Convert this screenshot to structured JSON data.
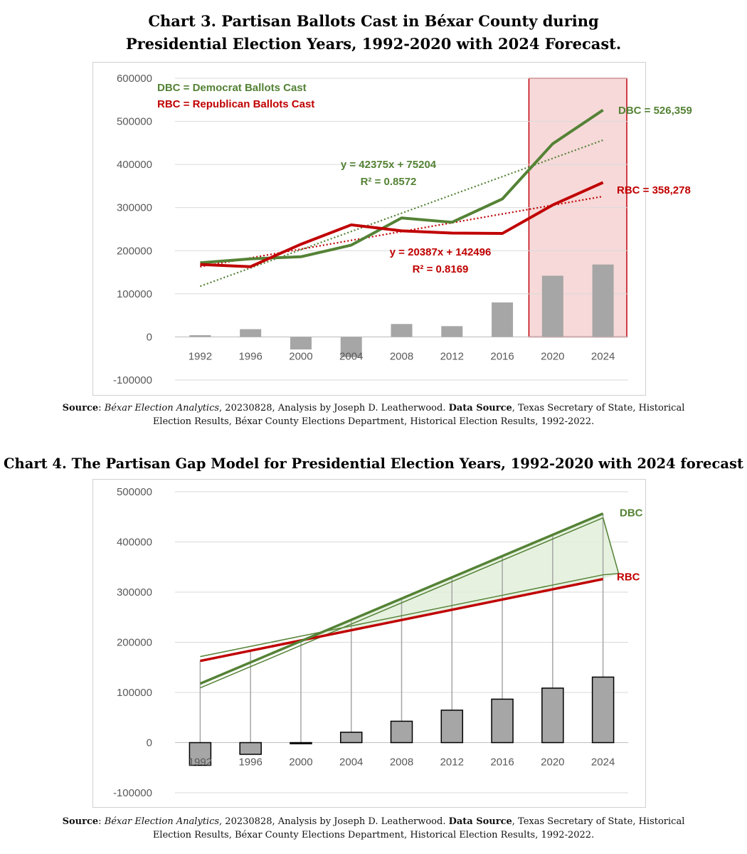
{
  "chart3": {
    "title_line1": "Chart 3. Partisan Ballots Cast in Béxar County during",
    "title_line2": "Presidential Election Years, 1992-2020 with 2024 Forecast.",
    "source_label": "Source",
    "source_pub": "Béxar Election Analytics",
    "source_rest": ", 20230828, Analysis by Joseph D. Leatherwood. ",
    "data_source_label": "Data Source",
    "data_source_rest": ", Texas Secretary of State, Historical Election Results, Béxar County Elections Department, Historical Election Results, 1992-2022."
  },
  "chart4": {
    "title": "Chart 4. The Partisan Gap Model for Presidential Election Years, 1992-2020 with 2024 forecast",
    "source_label": "Source",
    "source_pub": "Béxar Election Analytics",
    "source_rest": ", 20230828, Analysis by Joseph D. Leatherwood. ",
    "data_source_label": "Data Source",
    "data_source_rest": ", Texas Secretary of State, Historical Election Results, Béxar County Elections Department, Historical Election Results, 1992-2022."
  },
  "colors": {
    "dem": "#548235",
    "rep": "#c00000",
    "bar": "#a6a6a6",
    "highlight": "#f4cccc"
  },
  "chart_data": [
    {
      "type": "line",
      "title": "Chart 3. Partisan Ballots Cast in Béxar County during Presidential Election Years, 1992-2020 with 2024 Forecast.",
      "categories": [
        "1992",
        "1996",
        "2000",
        "2004",
        "2008",
        "2012",
        "2016",
        "2020",
        "2024"
      ],
      "yticks": [
        "600000",
        "500000",
        "400000",
        "300000",
        "200000",
        "100000",
        "0",
        "-100000"
      ],
      "ylim": [
        -100000,
        600000
      ],
      "grid": true,
      "legend": [
        "DBC = Democrat Ballots Cast",
        "RBC = Republican Ballots Cast"
      ],
      "series": [
        {
          "name": "DBC",
          "values": [
            172000,
            181000,
            186000,
            213000,
            276000,
            266000,
            320000,
            448000,
            526359
          ]
        },
        {
          "name": "RBC",
          "values": [
            168000,
            163000,
            215000,
            260000,
            246000,
            241000,
            240000,
            306000,
            358278
          ]
        }
      ],
      "gap_bars": [
        4000,
        18000,
        -29000,
        -47000,
        30000,
        25000,
        80000,
        142000,
        168000
      ],
      "trendlines": [
        {
          "series": "DBC",
          "equation": "y = 42375x + 75204",
          "r2": "R² = 0.8572",
          "slope": 42375,
          "intercept": 75204
        },
        {
          "series": "RBC",
          "equation": "y = 20387x + 142496",
          "r2": "R² = 0.8169",
          "slope": 20387,
          "intercept": 142496
        }
      ],
      "end_labels": [
        "DBC = 526,359",
        "RBC = 358,278"
      ],
      "highlight_categories": [
        "2020",
        "2024"
      ]
    },
    {
      "type": "line",
      "title": "Chart 4. The Partisan Gap Model for Presidential Election Years, 1992-2020 with 2024 forecast",
      "categories": [
        "1992",
        "1996",
        "2000",
        "2004",
        "2008",
        "2012",
        "2016",
        "2020",
        "2024"
      ],
      "yticks": [
        "500000",
        "400000",
        "300000",
        "200000",
        "100000",
        "0",
        "-100000"
      ],
      "ylim": [
        -100000,
        500000
      ],
      "grid": true,
      "series": [
        {
          "name": "DBC",
          "values": [
            117579,
            159954,
            202329,
            244704,
            287079,
            329454,
            371829,
            414204,
            456579
          ]
        },
        {
          "name": "RBC",
          "values": [
            162883,
            183270,
            203657,
            224044,
            244431,
            264818,
            285205,
            305592,
            325979
          ]
        }
      ],
      "gap_bars": [
        -45304,
        -23316,
        -1328,
        20660,
        42648,
        64636,
        86624,
        108612,
        130600
      ],
      "end_labels": [
        "DBC",
        "RBC"
      ]
    }
  ]
}
